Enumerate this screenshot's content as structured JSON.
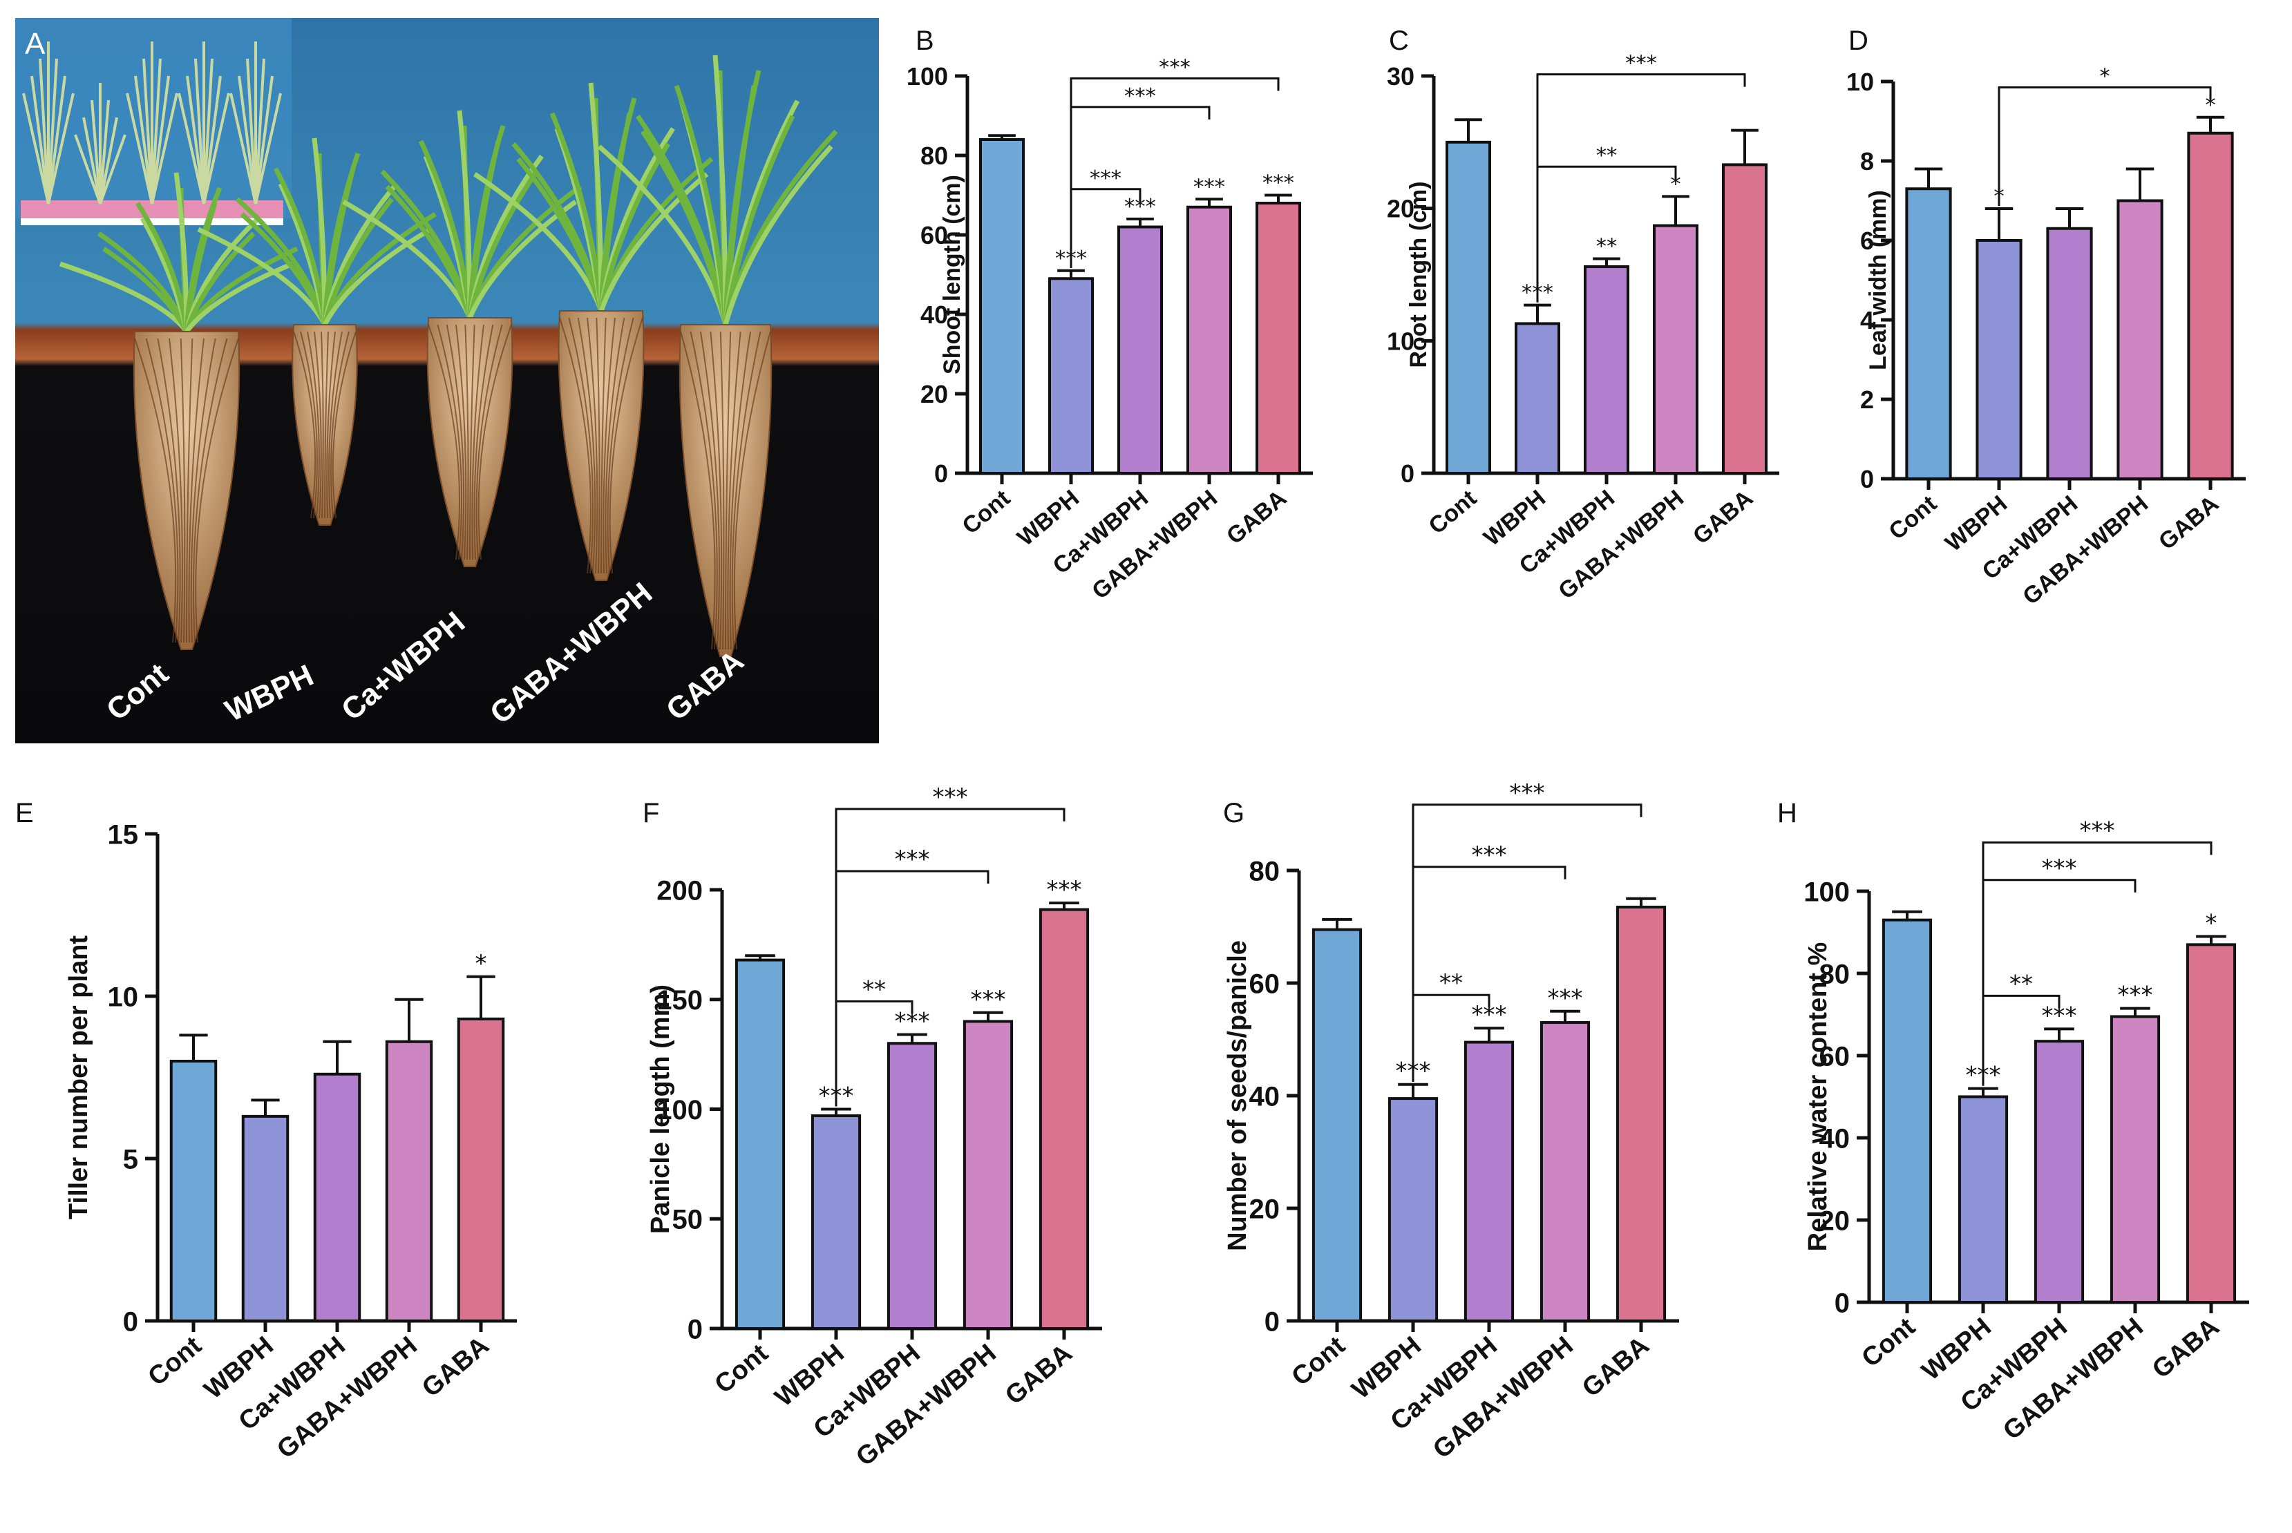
{
  "figure": {
    "photo": {
      "letter": "A",
      "labels": [
        "Cont",
        "WBPH",
        "Ca+WBPH",
        "GABA+WBPH",
        "GABA"
      ]
    },
    "colors": {
      "Cont": "#6fa8d6",
      "WBPH": "#8e92d6",
      "Ca+WBPH": "#b27fce",
      "GABA+WBPH": "#cd86c2",
      "GABA": "#d9738f"
    }
  },
  "chart_data": [
    {
      "panel": "B",
      "type": "bar",
      "categories": [
        "Cont",
        "WBPH",
        "Ca+WBPH",
        "GABA+WBPH",
        "GABA"
      ],
      "values": [
        84,
        49,
        62,
        67,
        68
      ],
      "errors": [
        1,
        2,
        2,
        2,
        2
      ],
      "ylabel": "Shoot length (cm)",
      "ylim": [
        0,
        100
      ],
      "yticks": [
        0,
        20,
        40,
        60,
        80,
        100
      ],
      "bar_stars": [
        "",
        "***",
        "***",
        "***",
        "***"
      ],
      "brackets": [
        {
          "from": 1,
          "to": 2,
          "label": "***"
        },
        {
          "from": 1,
          "to": 3,
          "label": "***"
        },
        {
          "from": 1,
          "to": 4,
          "label": "***"
        }
      ]
    },
    {
      "panel": "C",
      "type": "bar",
      "categories": [
        "Cont",
        "WBPH",
        "Ca+WBPH",
        "GABA+WBPH",
        "GABA"
      ],
      "values": [
        25,
        11.3,
        15.6,
        18.7,
        23.3
      ],
      "errors": [
        1.7,
        1.4,
        0.6,
        2.2,
        2.6
      ],
      "ylabel": "Root length (cm)",
      "ylim": [
        0,
        30
      ],
      "yticks": [
        0,
        10,
        20,
        30
      ],
      "bar_stars": [
        "",
        "***",
        "**",
        "*",
        ""
      ],
      "brackets": [
        {
          "from": 1,
          "to": 3,
          "label": "**"
        },
        {
          "from": 1,
          "to": 4,
          "label": "***"
        }
      ]
    },
    {
      "panel": "D",
      "type": "bar",
      "categories": [
        "Cont",
        "WBPH",
        "Ca+WBPH",
        "GABA+WBPH",
        "GABA"
      ],
      "values": [
        7.3,
        6.0,
        6.3,
        7.0,
        8.7
      ],
      "errors": [
        0.5,
        0.8,
        0.5,
        0.8,
        0.4
      ],
      "ylabel": "Leaf width (mm)",
      "ylim": [
        0,
        10
      ],
      "yticks": [
        0,
        2,
        4,
        6,
        8,
        10
      ],
      "bar_stars": [
        "",
        "*",
        "",
        "",
        "*"
      ],
      "brackets": [
        {
          "from": 1,
          "to": 4,
          "label": "*"
        }
      ]
    },
    {
      "panel": "E",
      "type": "bar",
      "categories": [
        "Cont",
        "WBPH",
        "Ca+WBPH",
        "GABA+WBPH",
        "GABA"
      ],
      "values": [
        8.0,
        6.3,
        7.6,
        8.6,
        9.3
      ],
      "errors": [
        0.8,
        0.5,
        1.0,
        1.3,
        1.3
      ],
      "ylabel": "Tiller number per plant",
      "ylim": [
        0,
        15
      ],
      "yticks": [
        0,
        5,
        10,
        15
      ],
      "bar_stars": [
        "",
        "",
        "",
        "",
        "*"
      ],
      "brackets": []
    },
    {
      "panel": "F",
      "type": "bar",
      "categories": [
        "Cont",
        "WBPH",
        "Ca+WBPH",
        "GABA+WBPH",
        "GABA"
      ],
      "values": [
        168,
        97,
        130,
        140,
        191
      ],
      "errors": [
        2,
        3,
        4,
        4,
        3
      ],
      "ylabel": "Panicle length (mm)",
      "ylim": [
        0,
        200
      ],
      "yticks": [
        0,
        50,
        100,
        150,
        200
      ],
      "bar_stars": [
        "",
        "***",
        "***",
        "***",
        "***"
      ],
      "brackets": [
        {
          "from": 1,
          "to": 2,
          "label": "**"
        },
        {
          "from": 1,
          "to": 3,
          "label": "***"
        },
        {
          "from": 1,
          "to": 4,
          "label": "***"
        }
      ]
    },
    {
      "panel": "G",
      "type": "bar",
      "categories": [
        "Cont",
        "WBPH",
        "Ca+WBPH",
        "GABA+WBPH",
        "GABA"
      ],
      "values": [
        69.5,
        39.5,
        49.5,
        53,
        73.5
      ],
      "errors": [
        1.8,
        2.5,
        2.5,
        2,
        1.5
      ],
      "ylabel": "Number of seeds/panicle",
      "ylim": [
        0,
        80
      ],
      "yticks": [
        0,
        20,
        40,
        60,
        80
      ],
      "bar_stars": [
        "",
        "***",
        "***",
        "***",
        ""
      ],
      "brackets": [
        {
          "from": 1,
          "to": 2,
          "label": "**"
        },
        {
          "from": 1,
          "to": 3,
          "label": "***"
        },
        {
          "from": 1,
          "to": 4,
          "label": "***"
        }
      ]
    },
    {
      "panel": "H",
      "type": "bar",
      "categories": [
        "Cont",
        "WBPH",
        "Ca+WBPH",
        "GABA+WBPH",
        "GABA"
      ],
      "values": [
        93,
        50,
        63.5,
        69.5,
        87
      ],
      "errors": [
        2,
        2,
        3,
        2,
        2
      ],
      "ylabel": "Relative water content %",
      "ylim": [
        0,
        100
      ],
      "yticks": [
        0,
        20,
        40,
        60,
        80,
        100
      ],
      "bar_stars": [
        "",
        "***",
        "***",
        "***",
        "*"
      ],
      "brackets": [
        {
          "from": 1,
          "to": 2,
          "label": "**"
        },
        {
          "from": 1,
          "to": 3,
          "label": "***"
        },
        {
          "from": 1,
          "to": 4,
          "label": "***"
        }
      ]
    }
  ]
}
